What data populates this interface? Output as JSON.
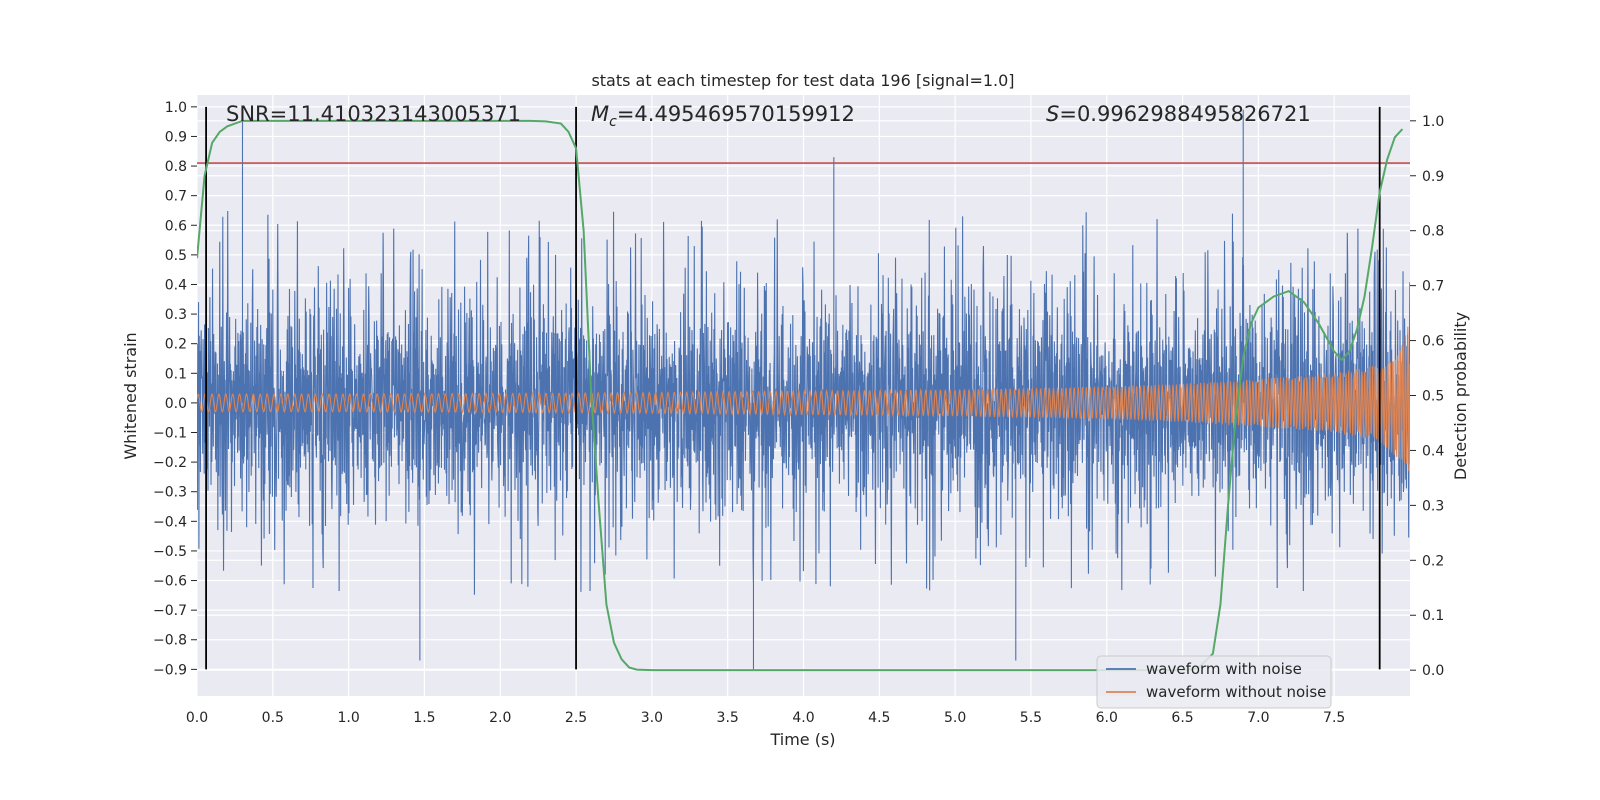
{
  "chart_data": {
    "type": "line",
    "title": "stats at each timestep for test data 196 [signal=1.0]",
    "xlabel": "Time (s)",
    "ylabel": "Whitened strain",
    "ylabel_right": "Detection probability",
    "xlim": [
      0.0,
      8.0
    ],
    "ylim": [
      -0.99,
      1.04
    ],
    "ylim_right": [
      -0.047,
      1.047
    ],
    "xticks": [
      "0.0",
      "0.5",
      "1.0",
      "1.5",
      "2.0",
      "2.5",
      "3.0",
      "3.5",
      "4.0",
      "4.5",
      "5.0",
      "5.5",
      "6.0",
      "6.5",
      "7.0",
      "7.5"
    ],
    "yticks": [
      "1.0",
      "0.9",
      "0.8",
      "0.7",
      "0.6",
      "0.5",
      "0.4",
      "0.3",
      "0.2",
      "0.1",
      "0.0",
      "−0.1",
      "−0.2",
      "−0.3",
      "−0.4",
      "−0.5",
      "−0.6",
      "−0.7",
      "−0.8",
      "−0.9"
    ],
    "yticks_right": [
      "1.0",
      "0.9",
      "0.8",
      "0.7",
      "0.6",
      "0.5",
      "0.4",
      "0.3",
      "0.2",
      "0.1",
      "0.0"
    ],
    "annotations": {
      "snr": "SNR=11.410323143005371",
      "mc_symbol": "M",
      "mc_sub": "c",
      "mc_value": "=4.495469570159912",
      "s_symbol": "S",
      "s_value": "=0.9962988495826721"
    },
    "threshold_left_axis": 0.81,
    "vertical_lines_x": [
      0.06,
      2.5,
      7.8
    ],
    "legend": [
      "waveform with noise",
      "waveform without noise"
    ],
    "legend_position": "lower-right",
    "series": [
      {
        "name": "waveform with noise",
        "color": "#4c72b0",
        "description": "noisy whitened strain, roughly within -0.9..1.0",
        "peaks_x": [
          0.3,
          1.47,
          3.67,
          4.2,
          5.4,
          6.9
        ],
        "peaks_y": [
          0.99,
          -0.87,
          -0.9,
          0.83,
          -0.87,
          0.99
        ]
      },
      {
        "name": "waveform without noise",
        "color": "#dd8452",
        "description": "chirp envelope growing from 0.03 to 0.28 amplitude",
        "envelope_x": [
          0.0,
          1.0,
          2.0,
          3.0,
          4.0,
          5.0,
          5.5,
          6.0,
          6.5,
          7.0,
          7.5,
          7.8,
          7.95,
          8.0
        ],
        "envelope_y": [
          0.03,
          0.03,
          0.032,
          0.035,
          0.04,
          0.045,
          0.05,
          0.055,
          0.065,
          0.08,
          0.1,
          0.13,
          0.2,
          0.28
        ]
      },
      {
        "name": "detection probability",
        "color": "#55a868",
        "axis": "right",
        "x": [
          0.0,
          0.05,
          0.1,
          0.15,
          0.2,
          0.25,
          0.3,
          0.4,
          0.6,
          1.0,
          1.5,
          2.0,
          2.2,
          2.3,
          2.4,
          2.45,
          2.5,
          2.55,
          2.6,
          2.65,
          2.7,
          2.75,
          2.8,
          2.85,
          2.9,
          3.0,
          3.5,
          4.0,
          5.0,
          6.0,
          6.5,
          6.6,
          6.7,
          6.75,
          6.8,
          6.85,
          6.9,
          6.95,
          7.0,
          7.1,
          7.2,
          7.3,
          7.4,
          7.5,
          7.55,
          7.6,
          7.65,
          7.7,
          7.75,
          7.8,
          7.85,
          7.9,
          7.95
        ],
        "y": [
          0.75,
          0.9,
          0.96,
          0.98,
          0.99,
          0.995,
          1.0,
          1.0,
          1.0,
          1.0,
          1.0,
          1.0,
          1.0,
          0.999,
          0.995,
          0.98,
          0.95,
          0.8,
          0.5,
          0.3,
          0.12,
          0.05,
          0.02,
          0.005,
          0.001,
          0.0,
          0.0,
          0.0,
          0.0,
          0.0,
          0.0,
          0.003,
          0.03,
          0.12,
          0.3,
          0.46,
          0.57,
          0.63,
          0.66,
          0.68,
          0.69,
          0.67,
          0.63,
          0.58,
          0.565,
          0.58,
          0.62,
          0.68,
          0.77,
          0.87,
          0.93,
          0.97,
          0.985
        ]
      }
    ]
  }
}
